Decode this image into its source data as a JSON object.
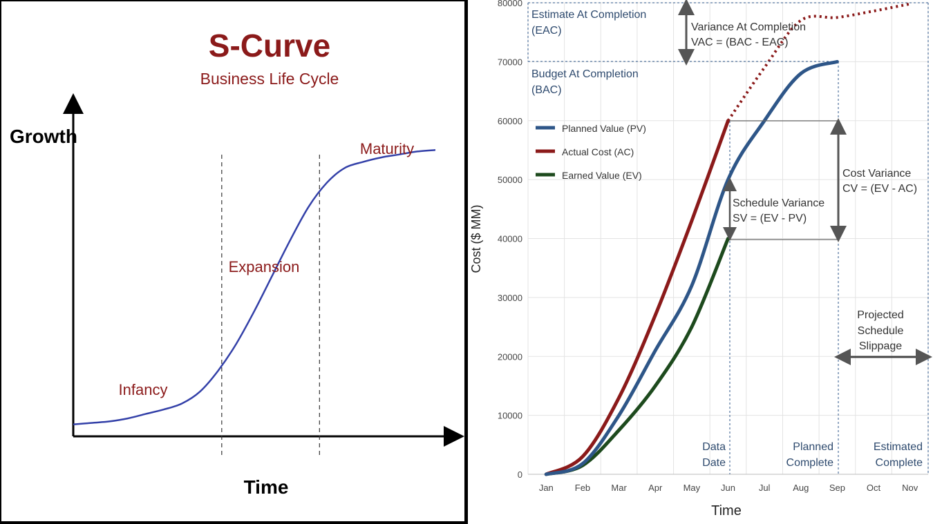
{
  "colors": {
    "left_title": "#8b1a1a",
    "left_curve": "#3340a8",
    "pv": "#2e5688",
    "ac": "#8b1a1a",
    "ev": "#1d4a1d",
    "annotation_blue": "#2e4a6e",
    "arrow_gray": "#555555"
  },
  "chart_data": [
    {
      "type": "line",
      "title": "S-Curve",
      "subtitle": "Business Life Cycle",
      "xlabel": "Time",
      "ylabel": "Growth",
      "stage_labels": [
        "Infancy",
        "Expansion",
        "Maturity"
      ],
      "grid": false,
      "series": [
        {
          "x": [
            0,
            0.05,
            0.1,
            0.15,
            0.2,
            0.25,
            0.3,
            0.35,
            0.4,
            0.45,
            0.5,
            0.55,
            0.6,
            0.65,
            0.7,
            0.75,
            0.8,
            0.85,
            0.9,
            0.95,
            1.0
          ],
          "values": [
            0.04,
            0.045,
            0.05,
            0.06,
            0.075,
            0.09,
            0.11,
            0.15,
            0.22,
            0.31,
            0.42,
            0.54,
            0.66,
            0.77,
            0.85,
            0.9,
            0.92,
            0.935,
            0.945,
            0.955,
            0.96
          ]
        }
      ],
      "xlim": [
        0,
        1
      ],
      "ylim": [
        0,
        1
      ],
      "dividers_x": [
        0.41,
        0.68
      ]
    },
    {
      "type": "line",
      "xlabel": "Time",
      "ylabel": "Cost ($ MM)",
      "categories": [
        "Jan",
        "Feb",
        "Mar",
        "Apr",
        "May",
        "Jun",
        "Jul",
        "Aug",
        "Sep",
        "Oct",
        "Nov"
      ],
      "ylim": [
        0,
        80000
      ],
      "yticks": [
        "0",
        "10000",
        "20000",
        "30000",
        "40000",
        "50000",
        "60000",
        "70000",
        "80000"
      ],
      "grid": true,
      "legend_position": "upper-left",
      "series": [
        {
          "name": "Planned Value (PV)",
          "x": [
            "Jan",
            "Feb",
            "Mar",
            "Apr",
            "May",
            "Jun",
            "Jul",
            "Aug",
            "Sep"
          ],
          "values": [
            0,
            1800,
            10000,
            21000,
            32000,
            50000,
            60000,
            68000,
            70000
          ]
        },
        {
          "name": "Actual Cost (AC)",
          "x": [
            "Jan",
            "Feb",
            "Mar",
            "Apr",
            "May",
            "Jun"
          ],
          "values": [
            0,
            3000,
            13000,
            27000,
            43000,
            60000
          ]
        },
        {
          "name": "Earned Value (EV)",
          "x": [
            "Jan",
            "Feb",
            "Mar",
            "Apr",
            "May",
            "Jun"
          ],
          "values": [
            0,
            1500,
            7500,
            15000,
            25000,
            40000
          ]
        },
        {
          "x": [
            "Jun",
            "Jul",
            "Aug",
            "Sep",
            "Oct",
            "Nov"
          ],
          "values": [
            60000,
            69000,
            77000,
            77500,
            78600,
            79800
          ]
        }
      ],
      "annotations": {
        "eac_line1": "Estimate At Completion",
        "eac_line2": "(EAC)",
        "vac_line1": "Variance At Completion",
        "vac_line2": "VAC = (BAC - EAC)",
        "bac_line1": "Budget At Completion",
        "bac_line2": "(BAC)",
        "cv_line1": "Cost Variance",
        "cv_line2": "CV = (EV - AC)",
        "sv_line1": "Schedule Variance",
        "sv_line2": "SV = (EV - PV)",
        "data_date_line1": "Data",
        "data_date_line2": "Date",
        "planned_complete_line1": "Planned",
        "planned_complete_line2": "Complete",
        "estimated_complete_line1": "Estimated",
        "estimated_complete_line2": "Complete",
        "slip_line1": "Projected",
        "slip_line2": "Schedule",
        "slip_line3": "Slippage"
      }
    }
  ]
}
